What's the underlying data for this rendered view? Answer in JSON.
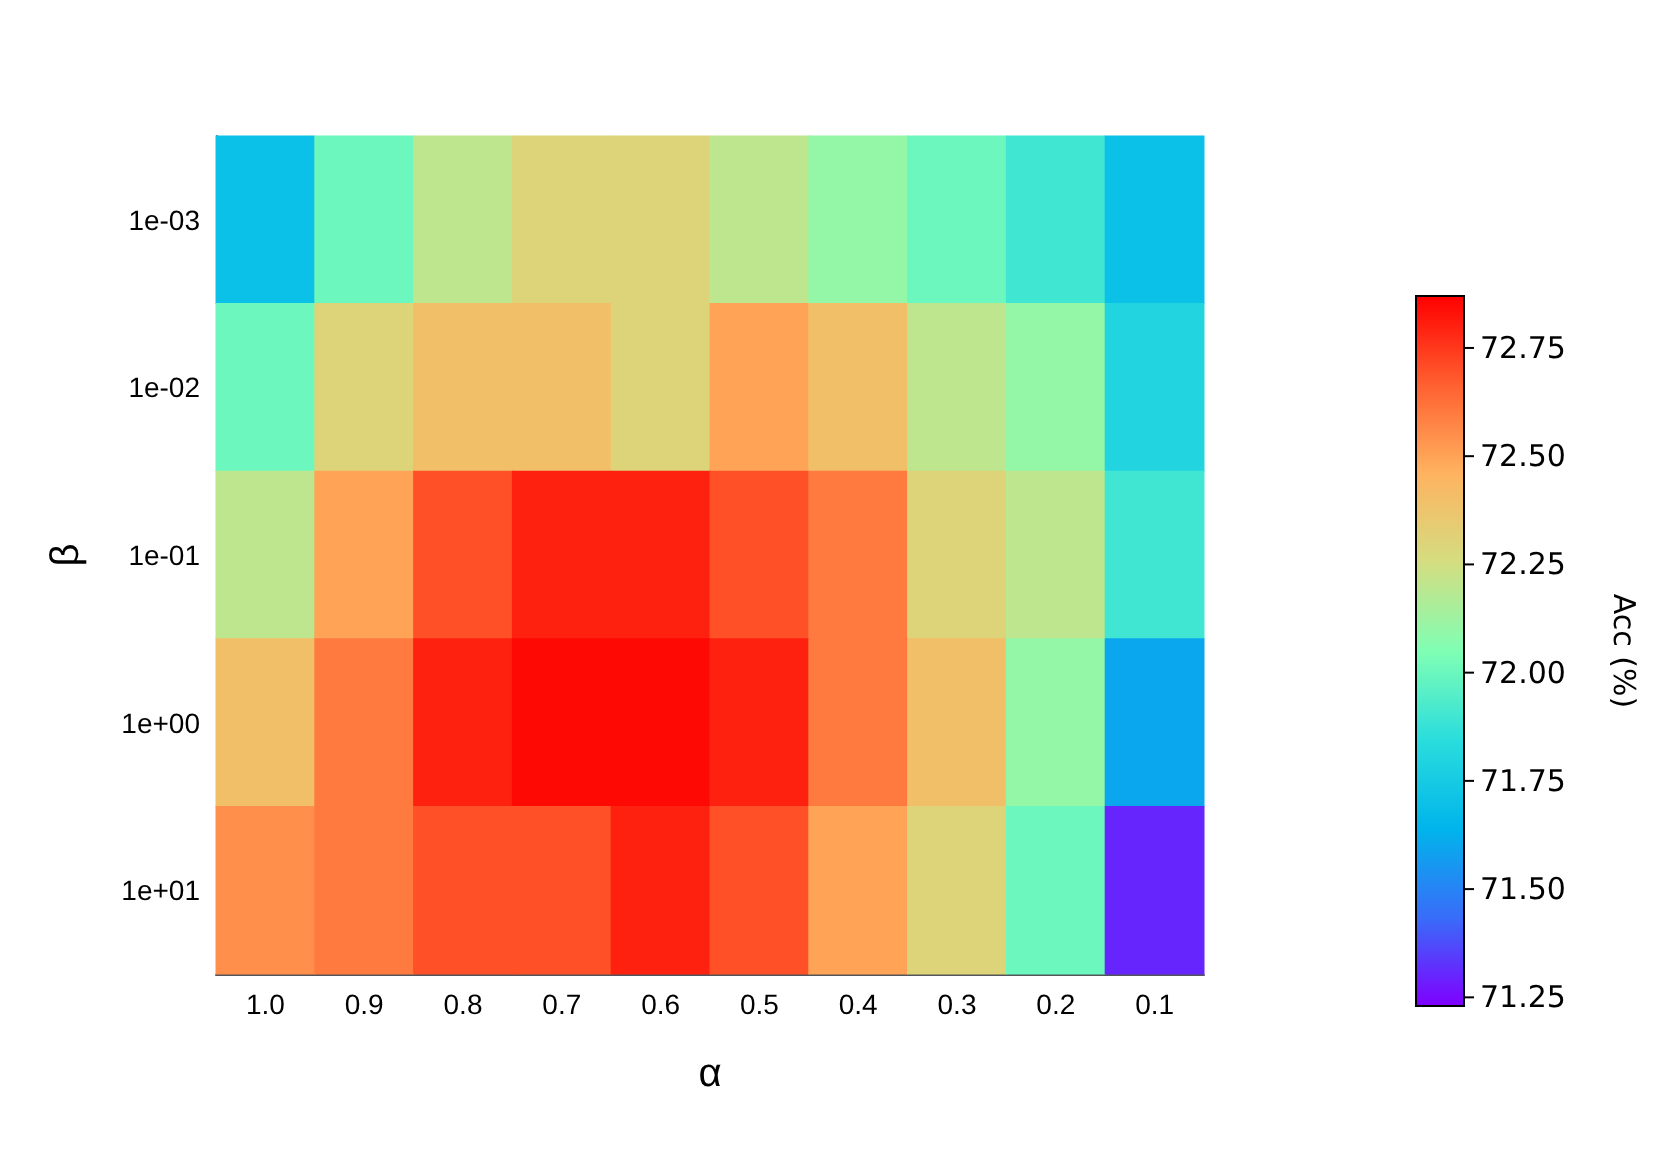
{
  "chart_data": {
    "type": "heatmap",
    "xlabel": "α",
    "ylabel": "β",
    "clabel": "Acc (%)",
    "categories": [
      "1.0",
      "0.9",
      "0.8",
      "0.7",
      "0.6",
      "0.5",
      "0.4",
      "0.3",
      "0.2",
      "0.1"
    ],
    "y_categories": [
      "1e-03",
      "1e-02",
      "1e-01",
      "1e+00",
      "1e+01"
    ],
    "cells": [
      [
        71.7,
        72.0,
        72.2,
        72.3,
        72.3,
        72.2,
        72.1,
        72.0,
        71.9,
        71.7
      ],
      [
        72.0,
        72.3,
        72.4,
        72.4,
        72.3,
        72.5,
        72.4,
        72.2,
        72.1,
        71.8
      ],
      [
        72.2,
        72.5,
        72.7,
        72.8,
        72.8,
        72.7,
        72.6,
        72.3,
        72.2,
        71.9
      ],
      [
        72.4,
        72.6,
        72.8,
        72.85,
        72.85,
        72.8,
        72.6,
        72.4,
        72.1,
        71.6
      ],
      [
        72.55,
        72.6,
        72.7,
        72.7,
        72.8,
        72.7,
        72.5,
        72.3,
        72.0,
        71.3
      ]
    ],
    "clim": [
      71.23,
      72.87
    ],
    "cticks": [
      {
        "value": 71.25,
        "label": "71.25"
      },
      {
        "value": 71.5,
        "label": "71.50"
      },
      {
        "value": 71.75,
        "label": "71.75"
      },
      {
        "value": 72,
        "label": "72.00"
      },
      {
        "value": 72.25,
        "label": "72.25"
      },
      {
        "value": 72.5,
        "label": "72.50"
      },
      {
        "value": 72.75,
        "label": "72.75"
      }
    ]
  }
}
